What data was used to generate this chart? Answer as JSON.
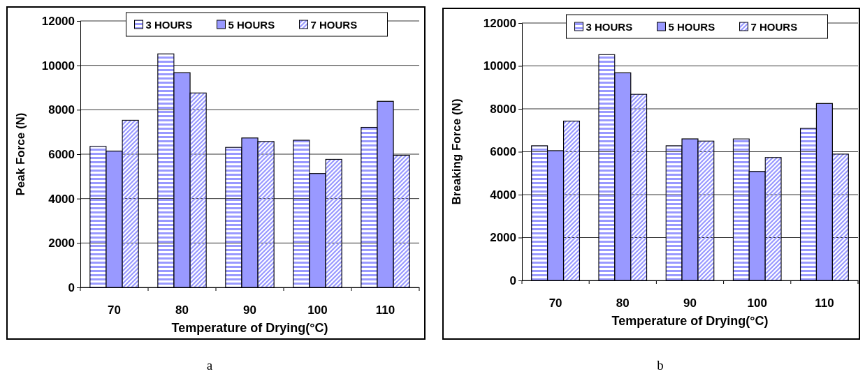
{
  "chart_data": [
    {
      "type": "bar",
      "categories": [
        "70",
        "80",
        "90",
        "100",
        "110"
      ],
      "xlabel": "Temperature of Drying(°C)",
      "ylabel": "Peak Force (N)",
      "ylim": [
        0,
        12000
      ],
      "yticks": [
        0,
        2000,
        4000,
        6000,
        8000,
        10000,
        12000
      ],
      "grid": "y",
      "legend": "top",
      "annotations": [
        "a"
      ],
      "series": [
        {
          "name": "3 HOURS",
          "color": "#9999ff",
          "values": [
            6350,
            10520,
            6310,
            6630,
            7210
          ]
        },
        {
          "name": "5 HOURS",
          "color": "#9999ff",
          "values": [
            6140,
            9670,
            6730,
            5130,
            8380
          ]
        },
        {
          "name": "7 HOURS",
          "color": "#9999ff",
          "values": [
            7530,
            8760,
            6570,
            5770,
            5950
          ]
        }
      ]
    },
    {
      "type": "bar",
      "categories": [
        "70",
        "80",
        "90",
        "100",
        "110"
      ],
      "xlabel": "Temperature of Drying(°C)",
      "ylabel": "Breaking Force (N)",
      "ylim": [
        0,
        12000
      ],
      "yticks": [
        0,
        2000,
        4000,
        6000,
        8000,
        10000,
        12000
      ],
      "grid": "y",
      "legend": "top",
      "annotations": [
        "b"
      ],
      "series": [
        {
          "name": "3 HOURS",
          "color": "#9999ff",
          "values": [
            6280,
            10530,
            6280,
            6600,
            7090
          ]
        },
        {
          "name": "5 HOURS",
          "color": "#9999ff",
          "values": [
            6050,
            9680,
            6600,
            5080,
            8250
          ]
        },
        {
          "name": "7 HOURS",
          "color": "#9999ff",
          "values": [
            7430,
            8680,
            6500,
            5730,
            5890
          ]
        }
      ]
    }
  ]
}
